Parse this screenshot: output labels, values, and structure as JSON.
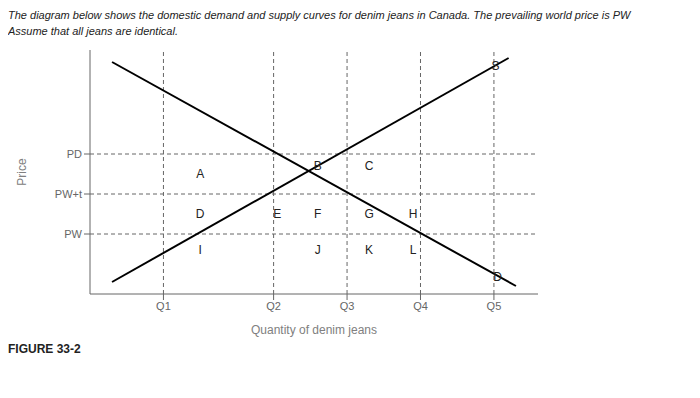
{
  "chart_data": {
    "type": "line",
    "title": "The diagram below shows the domestic demand and supply curves for denim jeans in Canada. The prevailing world price is PW",
    "subtitle": "Assume that all jeans are identical.",
    "x_label": "Quantity of denim jeans",
    "y_label": "Price",
    "series": [
      {
        "x": [
          0.3,
          5.8
        ],
        "values": [
          5.8,
          0.2
        ],
        "color": "#000000"
      },
      {
        "x": [
          0.3,
          5.7
        ],
        "values": [
          0.3,
          5.9
        ],
        "color": "#000000"
      }
    ],
    "hlines": [
      1.5,
      2.5,
      3.5
    ],
    "vlines": [
      1.0,
      2.5,
      3.5,
      4.5,
      5.5
    ],
    "xlim": [
      0.0,
      6.1
    ],
    "ylim": [
      0.0,
      6.1
    ],
    "xticks": [
      {
        "value": 1.0,
        "label": "Q1"
      },
      {
        "value": 2.5,
        "label": "Q2"
      },
      {
        "value": 3.5,
        "label": "Q3"
      },
      {
        "value": 4.5,
        "label": "Q4"
      },
      {
        "value": 5.5,
        "label": "Q5"
      }
    ],
    "yticks": [
      {
        "value": 1.5,
        "label": "PW"
      },
      {
        "value": 2.5,
        "label": "PW+t"
      },
      {
        "value": 3.5,
        "label": "PD"
      }
    ],
    "grid": false,
    "annotations": [
      {
        "text": "A",
        "x": 1.5,
        "y": 3.0
      },
      {
        "text": "B",
        "x": 3.1,
        "y": 3.2
      },
      {
        "text": "C",
        "x": 3.8,
        "y": 3.2
      },
      {
        "text": "D",
        "x": 1.5,
        "y": 2.0
      },
      {
        "text": "E",
        "x": 2.55,
        "y": 2.0
      },
      {
        "text": "F",
        "x": 3.1,
        "y": 2.0
      },
      {
        "text": "G",
        "x": 3.8,
        "y": 2.0
      },
      {
        "text": "H",
        "x": 4.4,
        "y": 2.0
      },
      {
        "text": "I",
        "x": 1.5,
        "y": 1.1
      },
      {
        "text": "J",
        "x": 3.1,
        "y": 1.1
      },
      {
        "text": "K",
        "x": 3.8,
        "y": 1.1
      },
      {
        "text": "L",
        "x": 4.4,
        "y": 1.1
      },
      {
        "text": "S",
        "x": 5.52,
        "y": 5.7
      },
      {
        "text": "D",
        "x": 5.55,
        "y": 0.42
      },
      {
        "text": "FIGURE 33-2"
      }
    ]
  }
}
